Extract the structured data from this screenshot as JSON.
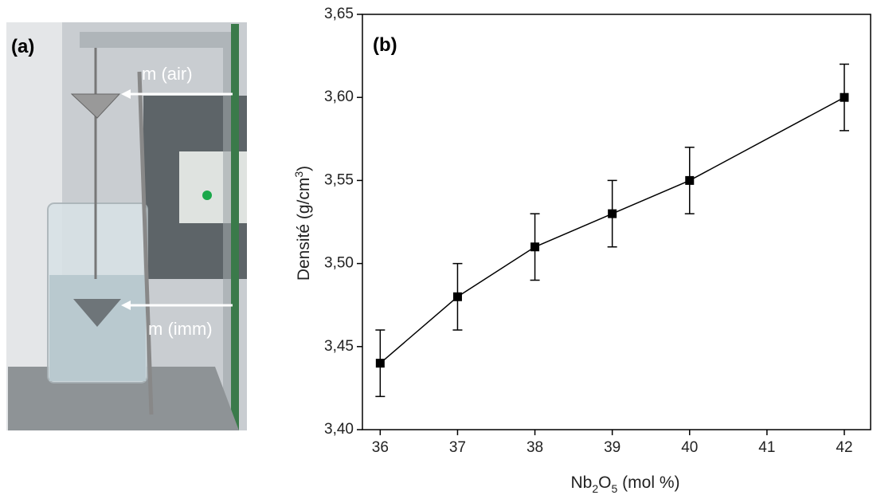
{
  "photo": {
    "panel_label": "(a)",
    "labels": [
      "m (air)",
      "m (imm)"
    ]
  },
  "chart_data": {
    "type": "line",
    "panel_label": "(b)",
    "xlabel_parts": [
      "Nb",
      "2",
      "O",
      "5",
      " (mol %)"
    ],
    "ylabel_parts": [
      "Densité (g/cm",
      "3",
      ")"
    ],
    "x": [
      36,
      37,
      38,
      39,
      40,
      42
    ],
    "series": [
      {
        "color": "#000000",
        "values": [
          3.44,
          3.48,
          3.51,
          3.53,
          3.55,
          3.6
        ],
        "errors": [
          0.02,
          0.02,
          0.02,
          0.02,
          0.02,
          0.02
        ]
      }
    ],
    "xlim": [
      35.77,
      42.34
    ],
    "ylim": [
      3.4,
      3.65
    ],
    "xticks": [
      36,
      37,
      38,
      39,
      40,
      41,
      42
    ],
    "yticks": [
      {
        "value": 3.4,
        "label": "3,40"
      },
      {
        "value": 3.45,
        "label": "3,45"
      },
      {
        "value": 3.5,
        "label": "3,50"
      },
      {
        "value": 3.55,
        "label": "3,55"
      },
      {
        "value": 3.6,
        "label": "3,60"
      },
      {
        "value": 3.65,
        "label": "3,65"
      }
    ],
    "grid": false
  }
}
